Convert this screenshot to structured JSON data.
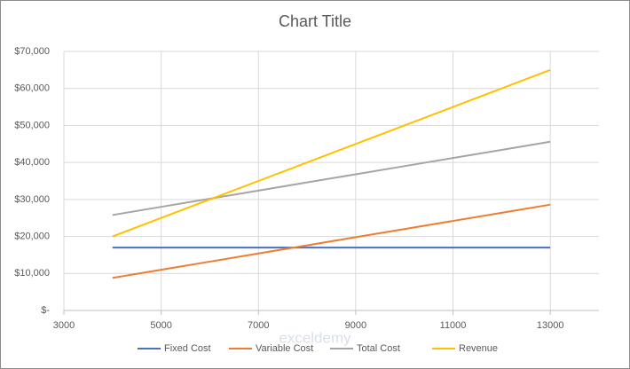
{
  "chart_data": {
    "type": "line",
    "title": "Chart Title",
    "x": [
      4000,
      5000,
      6000,
      7000,
      8000,
      9000,
      10000,
      11000,
      12000,
      13000
    ],
    "series": [
      {
        "name": "Fixed Cost",
        "color": "#4472c4",
        "values": [
          17000,
          17000,
          17000,
          17000,
          17000,
          17000,
          17000,
          17000,
          17000,
          17000
        ]
      },
      {
        "name": "Variable Cost",
        "color": "#ed7d31",
        "values": [
          8800,
          11000,
          13200,
          15400,
          17600,
          19800,
          22000,
          24200,
          26400,
          28600
        ]
      },
      {
        "name": "Total Cost",
        "color": "#a5a5a5",
        "values": [
          25800,
          28000,
          30200,
          32400,
          34600,
          36800,
          39000,
          41200,
          43400,
          45600
        ]
      },
      {
        "name": "Revenue",
        "color": "#ffc000",
        "values": [
          20000,
          25000,
          30000,
          35000,
          40000,
          45000,
          50000,
          55000,
          60000,
          65000
        ]
      }
    ],
    "xlim": [
      3000,
      14000
    ],
    "xticks": [
      3000,
      5000,
      7000,
      9000,
      11000,
      13000
    ],
    "ylim": [
      0,
      70000
    ],
    "yticks": [
      {
        "value": 0,
        "label": "$-"
      },
      {
        "value": 10000,
        "label": "$10,000"
      },
      {
        "value": 20000,
        "label": "$20,000"
      },
      {
        "value": 30000,
        "label": "$30,000"
      },
      {
        "value": 40000,
        "label": "$40,000"
      },
      {
        "value": 50000,
        "label": "$50,000"
      },
      {
        "value": 60000,
        "label": "$60,000"
      },
      {
        "value": 70000,
        "label": "$70,000"
      }
    ],
    "grid": true,
    "legend": "bottom",
    "watermark": "exceldemy"
  }
}
